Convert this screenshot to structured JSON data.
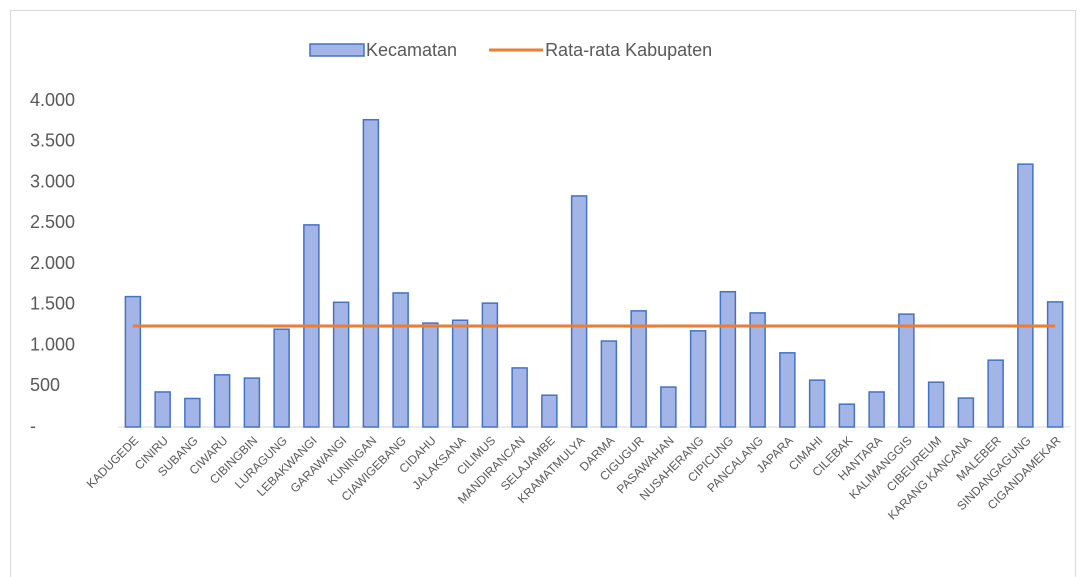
{
  "chart_data": {
    "type": "bar",
    "categories": [
      "KADUGEDE",
      "CINIRU",
      "SUBANG",
      "CIWARU",
      "CIBINGBIN",
      "LURAGUNG",
      "LEBAKWANGI",
      "GARAWANGI",
      "KUNINGAN",
      "CIAWIGEBANG",
      "CIDAHU",
      "JALAKSANA",
      "CILIMUS",
      "MANDIRANCAN",
      "SELAJAMBE",
      "KRAMATMULYA",
      "DARMA",
      "CIGUGUR",
      "PASAWAHAN",
      "NUSAHERANG",
      "CIPICUNG",
      "PANCALANG",
      "JAPARA",
      "CIMAHI",
      "CILEBAK",
      "HANTARA",
      "KALIMANGGIS",
      "CIBEUREUM",
      "KARANG KANCANA",
      "MALEBER",
      "SINDANGAGUNG",
      "CIGANDAMEKAR"
    ],
    "series": [
      {
        "name": "Kecamatan",
        "type": "bar",
        "color": "#a3b4e6",
        "edge_color": "#4472c4",
        "values": [
          1600,
          430,
          350,
          640,
          600,
          1200,
          2480,
          1530,
          3770,
          1645,
          1275,
          1310,
          1520,
          725,
          390,
          2835,
          1055,
          1425,
          490,
          1180,
          1660,
          1400,
          910,
          575,
          280,
          430,
          1385,
          550,
          355,
          820,
          3225,
          1535
        ]
      },
      {
        "name": "Rata-rata Kabupaten",
        "type": "line",
        "color": "#ed7d31",
        "values": [
          1240,
          1240,
          1240,
          1240,
          1240,
          1240,
          1240,
          1240,
          1240,
          1240,
          1240,
          1240,
          1240,
          1240,
          1240,
          1240,
          1240,
          1240,
          1240,
          1240,
          1240,
          1240,
          1240,
          1240,
          1240,
          1240,
          1240,
          1240,
          1240,
          1240,
          1240,
          1240
        ]
      }
    ],
    "ylim": [
      0,
      4000
    ],
    "yticks": [
      {
        "value": 0,
        "label": "-"
      },
      500,
      {
        "value": 1000,
        "label": "1.000"
      },
      {
        "value": 1500,
        "label": "1.500"
      },
      {
        "value": 2000,
        "label": "2.000"
      },
      {
        "value": 2500,
        "label": "2.500"
      },
      {
        "value": 3000,
        "label": "3.000"
      },
      {
        "value": 3500,
        "label": "3.500"
      },
      {
        "value": 4000,
        "label": "4.000"
      }
    ],
    "grid": false,
    "legend": "top"
  }
}
